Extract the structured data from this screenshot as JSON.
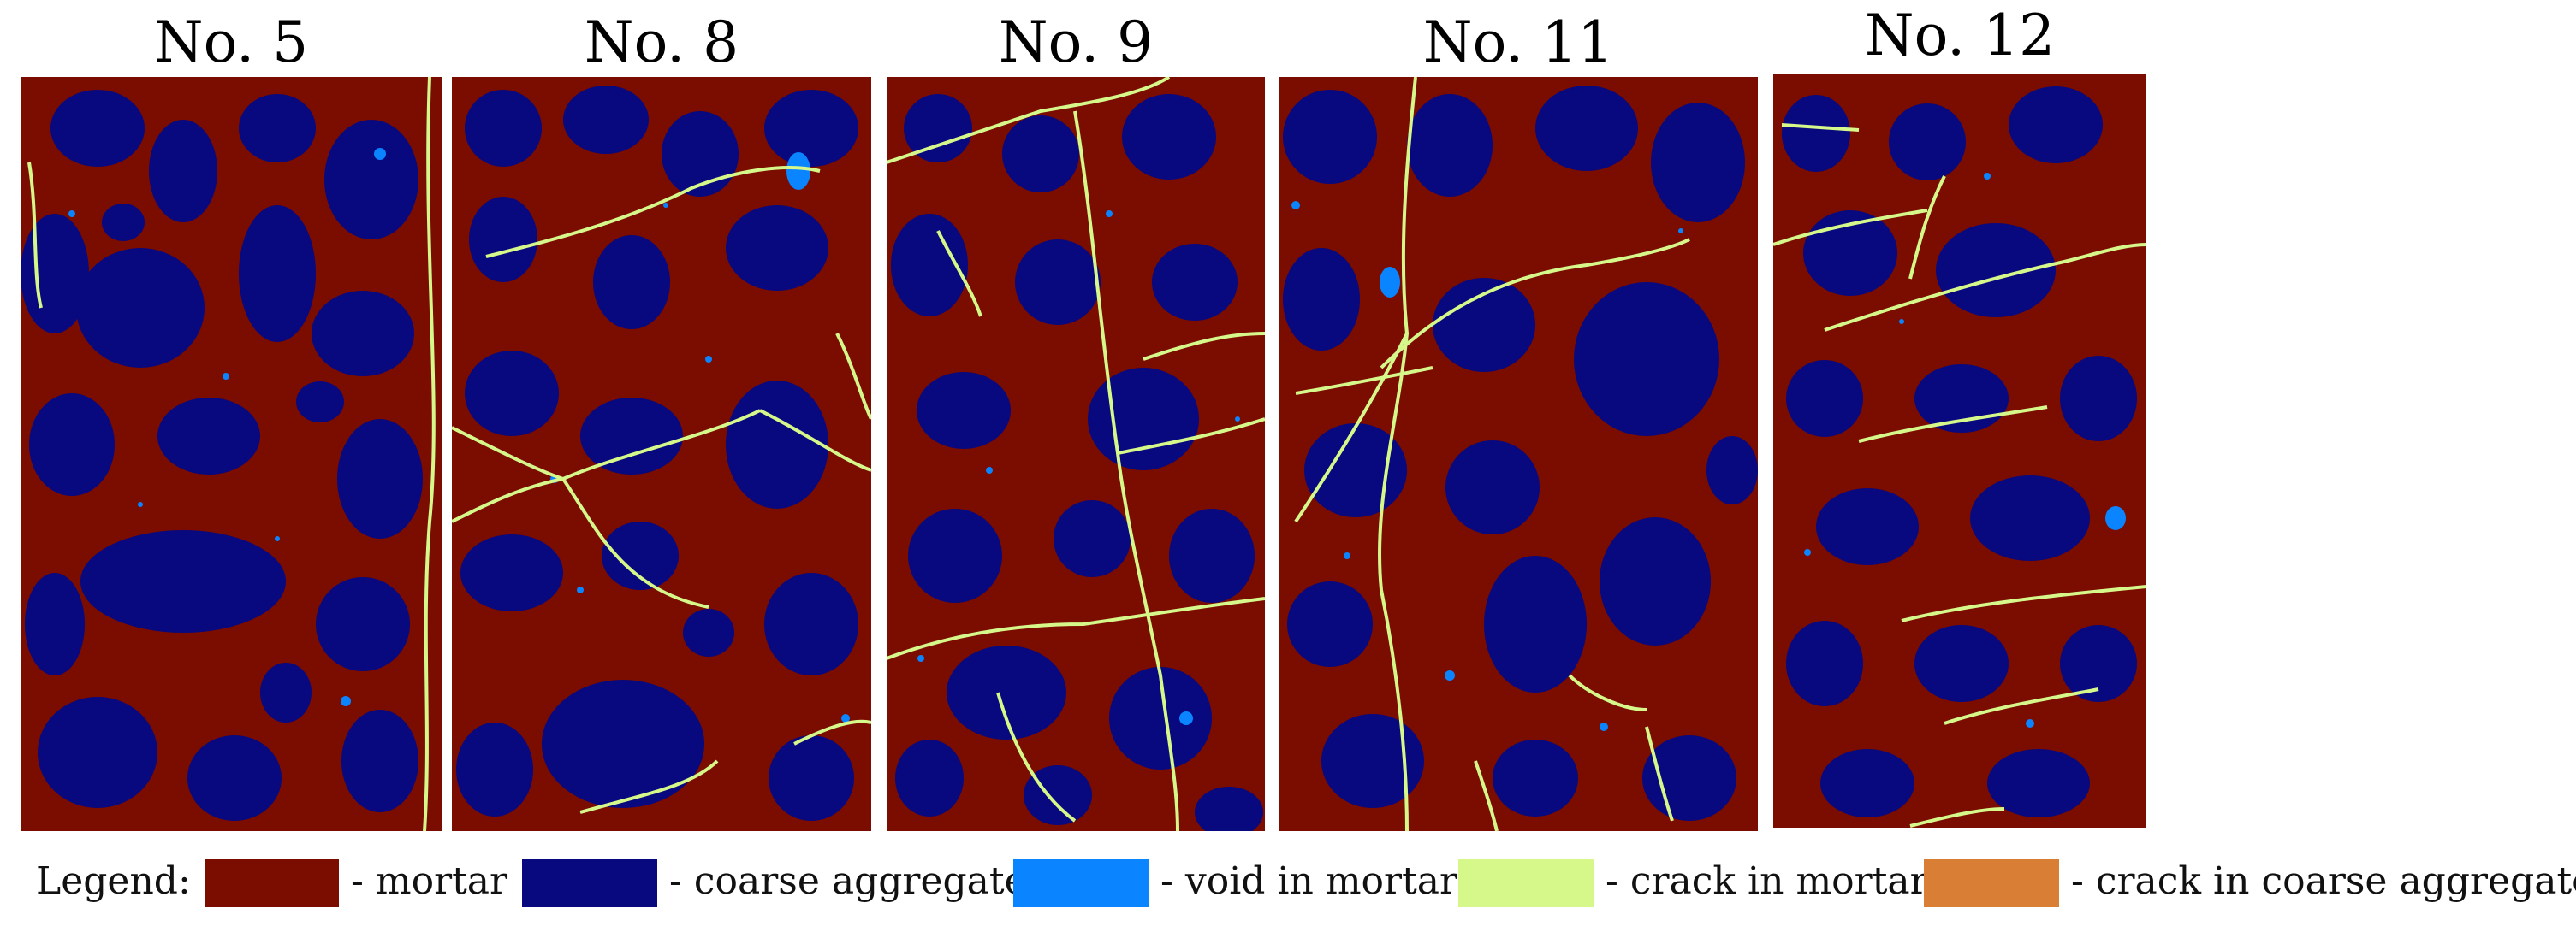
{
  "panels": [
    {
      "title": "No. 5"
    },
    {
      "title": "No. 8"
    },
    {
      "title": "No. 9"
    },
    {
      "title": "No. 11"
    },
    {
      "title": "No. 12"
    }
  ],
  "legend": {
    "title": "Legend:",
    "items": [
      {
        "label": "- mortar",
        "color": "#7a0c00"
      },
      {
        "label": "- coarse aggregate",
        "color": "#08087f"
      },
      {
        "label": "- void in mortar",
        "color": "#0a84ff"
      },
      {
        "label": "- crack in mortar",
        "color": "#d6f88a"
      },
      {
        "label": "- crack in coarse aggregate",
        "color": "#d97f35"
      }
    ]
  }
}
